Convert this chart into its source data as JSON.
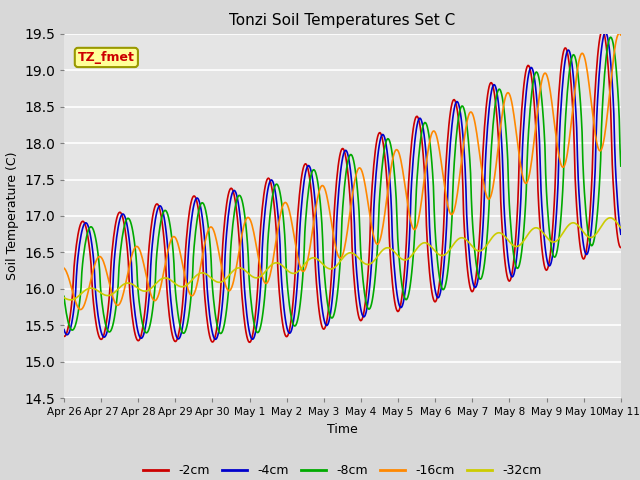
{
  "title": "Tonzi Soil Temperatures Set C",
  "xlabel": "Time",
  "ylabel": "Soil Temperature (C)",
  "ylim": [
    14.5,
    19.5
  ],
  "annotation": "TZ_fmet",
  "background_color": "#e8e8e8",
  "plot_bg_color": "#e5e5e5",
  "grid_color": "white",
  "series_colors": [
    "#cc0000",
    "#0000cc",
    "#00aa00",
    "#ff8800",
    "#cccc00"
  ],
  "series_labels": [
    "-2cm",
    "-4cm",
    "-8cm",
    "-16cm",
    "-32cm"
  ],
  "line_width": 1.2,
  "n_days": 15,
  "points_per_day": 48,
  "x_tick_labels": [
    "Apr 26",
    "Apr 27",
    "Apr 28",
    "Apr 29",
    "Apr 30",
    "May 1",
    "May 2",
    "May 3",
    "May 4",
    "May 5",
    "May 6",
    "May 7",
    "May 8",
    "May 9",
    "May 10",
    "May 11"
  ]
}
